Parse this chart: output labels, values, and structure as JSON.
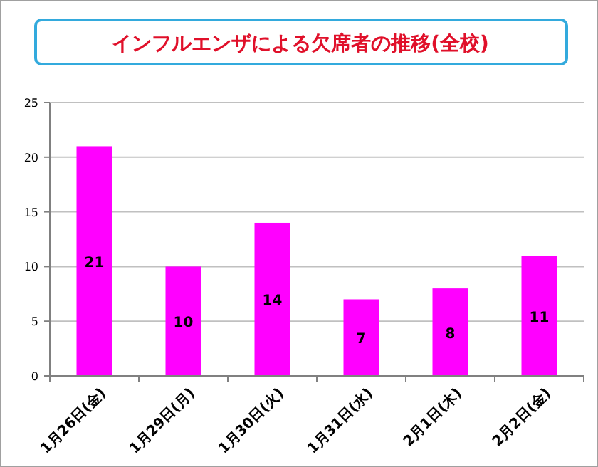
{
  "chart_data": {
    "type": "bar",
    "title": "インフルエンザによる欠席者の推移(全校)",
    "categories": [
      "1月26日(金)",
      "1月29日(月)",
      "1月30日(火)",
      "1月31日(水)",
      "2月1日(木)",
      "2月2日(金)"
    ],
    "values": [
      21,
      10,
      14,
      7,
      8,
      11
    ],
    "color": "#ff00ff",
    "ylim": [
      0,
      25
    ],
    "yticks": [
      0,
      5,
      10,
      15,
      20,
      25
    ],
    "grid": "y",
    "data_labels": true
  }
}
